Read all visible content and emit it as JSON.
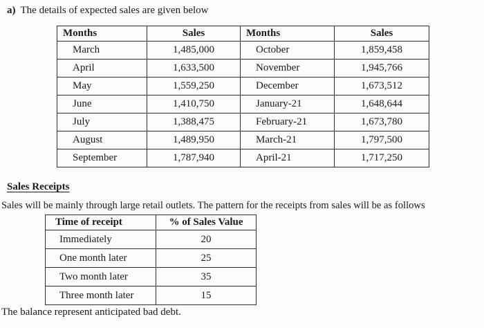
{
  "intro": {
    "label": "a)",
    "text": "The details of expected sales are given below"
  },
  "sales_table": {
    "headers": [
      "Months",
      "Sales",
      "Months",
      "Sales"
    ],
    "rows": [
      [
        "March",
        "1,485,000",
        "October",
        "1,859,458"
      ],
      [
        "April",
        "1,633,500",
        "November",
        "1,945,766"
      ],
      [
        "May",
        "1,559,250",
        "December",
        "1,673,512"
      ],
      [
        "June",
        "1,410,750",
        "January-21",
        "1,648,644"
      ],
      [
        "July",
        "1,388,475",
        "February-21",
        "1,673,780"
      ],
      [
        "August",
        "1,489,950",
        "March-21",
        "1,797,500"
      ],
      [
        "September",
        "1,787,940",
        "April-21",
        "1,717,250"
      ]
    ]
  },
  "receipts": {
    "heading": "Sales Receipts",
    "paragraph": "Sales will be mainly through large retail outlets. The pattern for the receipts from sales will be as follows"
  },
  "receipts_table": {
    "headers": [
      "Time of receipt",
      "% of Sales Value"
    ],
    "rows": [
      [
        "Immediately",
        "20"
      ],
      [
        "One month later",
        "25"
      ],
      [
        "Two month later",
        "35"
      ],
      [
        "Three month later",
        "15"
      ]
    ]
  },
  "footer_note": "The balance represent anticipated bad debt."
}
